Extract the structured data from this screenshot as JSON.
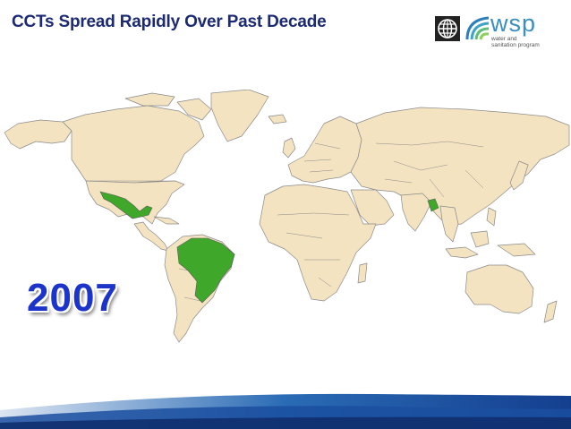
{
  "slide": {
    "title": "CCTs Spread Rapidly Over Past Decade",
    "year": "2007"
  },
  "logos": {
    "world_bank_icon": "world-bank-globe-icon",
    "wsp_name": "wsp",
    "wsp_tagline_line1": "water and",
    "wsp_tagline_line2": "sanitation program"
  },
  "map": {
    "land_color": "#f4e3c1",
    "border_color": "#8a8a8a",
    "highlight_color": "#3fa82a",
    "highlighted_countries": [
      "Mexico",
      "Brazil",
      "Bangladesh"
    ]
  },
  "colors": {
    "title": "#1b2a73",
    "year": "#1c34c9",
    "footer_wave": "#1b4fa0"
  }
}
